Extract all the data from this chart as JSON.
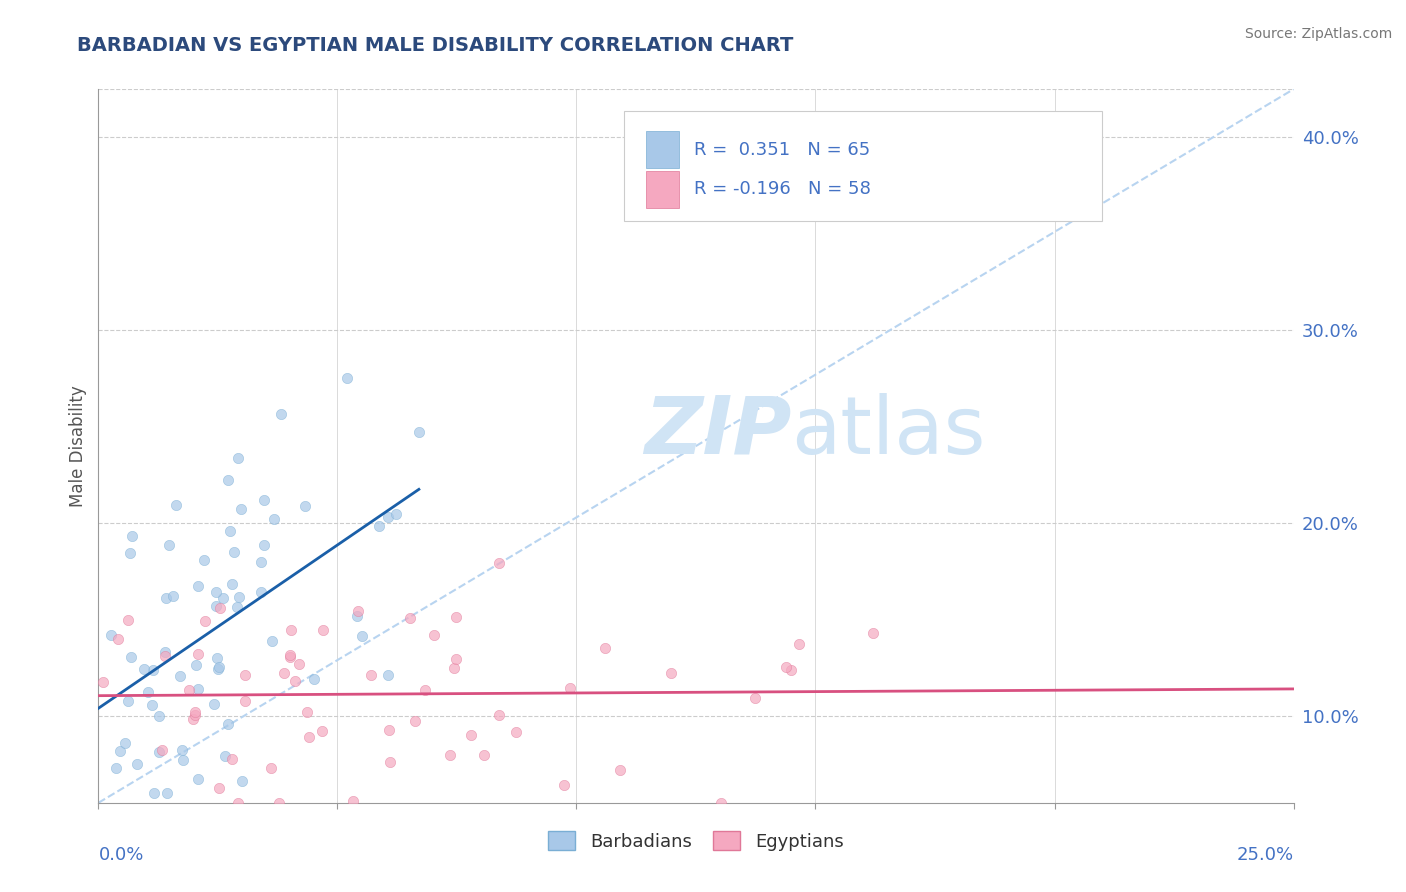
{
  "title": "BARBADIAN VS EGYPTIAN MALE DISABILITY CORRELATION CHART",
  "source": "Source: ZipAtlas.com",
  "ylabel": "Male Disability",
  "right_yticks": [
    0.1,
    0.2,
    0.3,
    0.4
  ],
  "right_yticklabels": [
    "10.0%",
    "20.0%",
    "30.0%",
    "40.0%"
  ],
  "xlim": [
    0.0,
    0.25
  ],
  "ylim": [
    0.055,
    0.425
  ],
  "barbadian_color": "#a8c8e8",
  "barbadian_edge": "#7aaed4",
  "egyptian_color": "#f5a8c0",
  "egyptian_edge": "#e07898",
  "trend_blue": "#1a5fa8",
  "trend_pink": "#d85080",
  "diagonal_color": "#b8d4f0",
  "title_color": "#2c4a7c",
  "source_color": "#777777",
  "axis_color": "#999999",
  "grid_color": "#cccccc",
  "tick_color": "#4472c4",
  "watermark_color": "#d0e4f5",
  "seed": 17,
  "N_blue": 65,
  "N_pink": 58,
  "alpha_scatter": 0.7,
  "scatter_size": 55
}
